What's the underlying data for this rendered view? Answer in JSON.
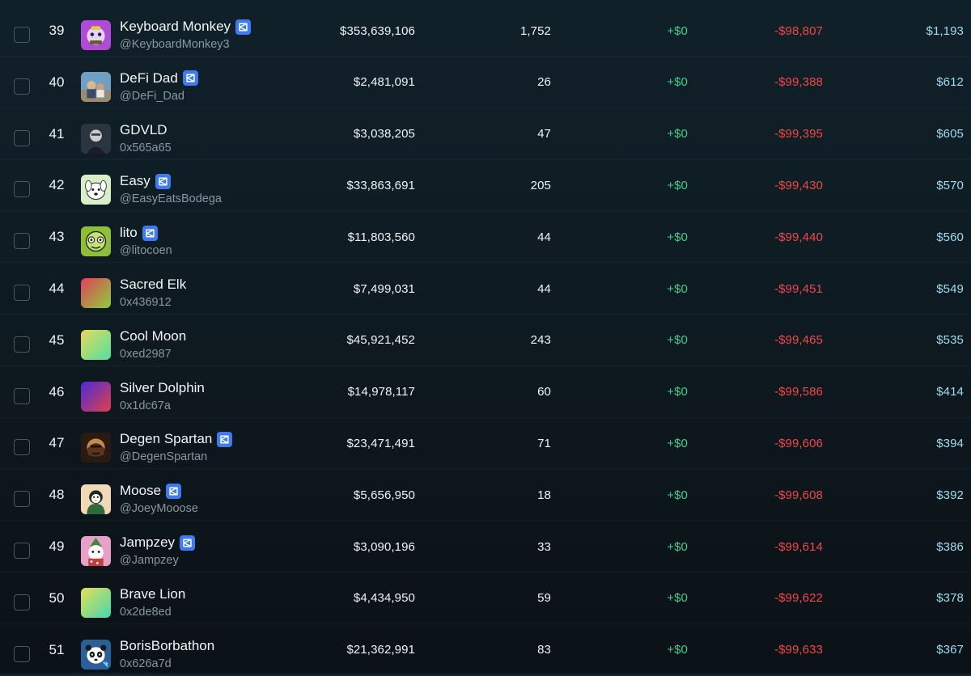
{
  "rows": [
    {
      "rank": "39",
      "name": "Keyboard Monkey",
      "verified": true,
      "handle": "@KeyboardMonkey3",
      "value": "$353,639,106",
      "count": "1,752",
      "gain": "+$0",
      "loss": "-$98,807",
      "final": "$1,193",
      "avatar": "monkey-avatar",
      "colors": [
        "#b04bd8",
        "#e6d3f0"
      ]
    },
    {
      "rank": "40",
      "name": "DeFi Dad",
      "verified": true,
      "handle": "@DeFi_Dad",
      "value": "$2,481,091",
      "count": "26",
      "gain": "+$0",
      "loss": "-$99,388",
      "final": "$612",
      "avatar": "photo-avatar",
      "colors": [
        "#6f9fc4",
        "#d8b890"
      ]
    },
    {
      "rank": "41",
      "name": "GDVLD",
      "verified": false,
      "handle": "0x565a65",
      "value": "$3,038,205",
      "count": "47",
      "gain": "+$0",
      "loss": "-$99,395",
      "final": "$605",
      "avatar": "portrait-avatar",
      "colors": [
        "#2b3540",
        "#c9ccd1"
      ]
    },
    {
      "rank": "42",
      "name": "Easy",
      "verified": true,
      "handle": "@EasyEatsBodega",
      "value": "$33,863,691",
      "count": "205",
      "gain": "+$0",
      "loss": "-$99,430",
      "final": "$570",
      "avatar": "dog-avatar",
      "colors": [
        "#d9edc9",
        "#ffffff"
      ]
    },
    {
      "rank": "43",
      "name": "lito",
      "verified": true,
      "handle": "@litocoen",
      "value": "$11,803,560",
      "count": "44",
      "gain": "+$0",
      "loss": "-$99,440",
      "final": "$560",
      "avatar": "cartoon-avatar",
      "colors": [
        "#8fbf3a",
        "#1d2b12"
      ]
    },
    {
      "rank": "44",
      "name": "Sacred Elk",
      "verified": false,
      "handle": "0x436912",
      "value": "$7,499,031",
      "count": "44",
      "gain": "+$0",
      "loss": "-$99,451",
      "final": "$549",
      "avatar": "gradient-avatar",
      "colors": [
        "#e0405a",
        "#8ccf3a"
      ]
    },
    {
      "rank": "45",
      "name": "Cool Moon",
      "verified": false,
      "handle": "0xed2987",
      "value": "$45,921,452",
      "count": "243",
      "gain": "+$0",
      "loss": "-$99,465",
      "final": "$535",
      "avatar": "gradient-avatar",
      "colors": [
        "#e8d95a",
        "#4fe0a0"
      ]
    },
    {
      "rank": "46",
      "name": "Silver Dolphin",
      "verified": false,
      "handle": "0x1dc67a",
      "value": "$14,978,117",
      "count": "60",
      "gain": "+$0",
      "loss": "-$99,586",
      "final": "$414",
      "avatar": "gradient-avatar",
      "colors": [
        "#4a2bd8",
        "#e0404a"
      ]
    },
    {
      "rank": "47",
      "name": "Degen Spartan",
      "verified": true,
      "handle": "@DegenSpartan",
      "value": "$23,471,491",
      "count": "71",
      "gain": "+$0",
      "loss": "-$99,606",
      "final": "$394",
      "avatar": "spartan-avatar",
      "colors": [
        "#5a3520",
        "#c88a50"
      ]
    },
    {
      "rank": "48",
      "name": "Moose",
      "verified": true,
      "handle": "@JoeyMooose",
      "value": "$5,656,950",
      "count": "18",
      "gain": "+$0",
      "loss": "-$99,608",
      "final": "$392",
      "avatar": "penguin-avatar",
      "colors": [
        "#f1d9b8",
        "#2f6b3a"
      ]
    },
    {
      "rank": "49",
      "name": "Jampzey",
      "verified": true,
      "handle": "@Jampzey",
      "value": "$3,090,196",
      "count": "33",
      "gain": "+$0",
      "loss": "-$99,614",
      "final": "$386",
      "avatar": "elf-avatar",
      "colors": [
        "#e8a0c8",
        "#3f8a3a"
      ]
    },
    {
      "rank": "50",
      "name": "Brave Lion",
      "verified": false,
      "handle": "0x2de8ed",
      "value": "$4,434,950",
      "count": "59",
      "gain": "+$0",
      "loss": "-$99,622",
      "final": "$378",
      "avatar": "gradient-avatar",
      "colors": [
        "#e6df55",
        "#43d8b0"
      ]
    },
    {
      "rank": "51",
      "name": "BorisBorbathon",
      "verified": false,
      "handle": "0x626a7d",
      "value": "$21,362,991",
      "count": "83",
      "gain": "+$0",
      "loss": "-$99,633",
      "final": "$367",
      "avatar": "panda-avatar",
      "colors": [
        "#2a5f9a",
        "#ffffff"
      ]
    }
  ]
}
